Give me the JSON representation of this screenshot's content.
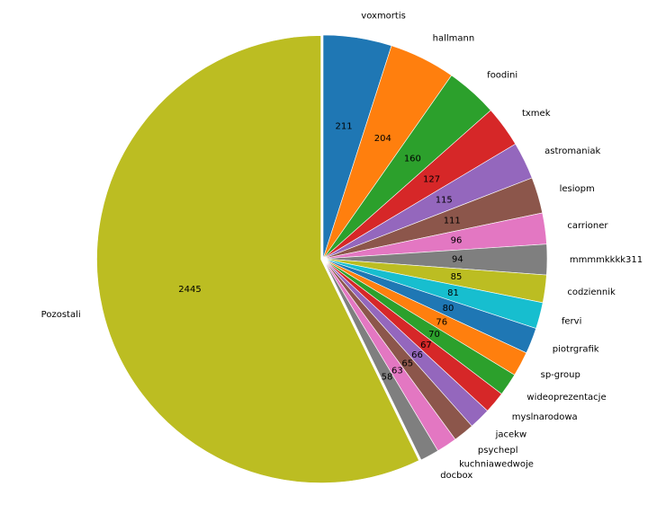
{
  "chart_data": {
    "type": "pie",
    "title": "",
    "start_angle_deg": 90,
    "direction": "clockwise",
    "slices": [
      {
        "label": "voxmortis",
        "value": 211,
        "color": "#1f77b4"
      },
      {
        "label": "hallmann",
        "value": 204,
        "color": "#ff7f0e"
      },
      {
        "label": "foodini",
        "value": 160,
        "color": "#2ca02c"
      },
      {
        "label": "txmek",
        "value": 127,
        "color": "#d62728"
      },
      {
        "label": "astromaniak",
        "value": 115,
        "color": "#9467bd"
      },
      {
        "label": "lesiopm",
        "value": 111,
        "color": "#8c564b"
      },
      {
        "label": "carrioner",
        "value": 96,
        "color": "#e377c2"
      },
      {
        "label": "mmmmkkkk311",
        "value": 94,
        "color": "#7f7f7f"
      },
      {
        "label": "codziennik",
        "value": 85,
        "color": "#bcbd22"
      },
      {
        "label": "fervi",
        "value": 81,
        "color": "#17becf"
      },
      {
        "label": "piotrgrafik",
        "value": 80,
        "color": "#1f77b4"
      },
      {
        "label": "sp-group",
        "value": 76,
        "color": "#ff7f0e"
      },
      {
        "label": "wideoprezentacje",
        "value": 70,
        "color": "#2ca02c"
      },
      {
        "label": "myslnarodowa",
        "value": 67,
        "color": "#d62728"
      },
      {
        "label": "jacekw",
        "value": 66,
        "color": "#9467bd"
      },
      {
        "label": "psychepl",
        "value": 65,
        "color": "#8c564b"
      },
      {
        "label": "kuchniawedwoje",
        "value": 63,
        "color": "#e377c2"
      },
      {
        "label": "docbox",
        "value": 58,
        "color": "#7f7f7f"
      },
      {
        "label": "Pozostali",
        "value": 2445,
        "color": "#bcbd22",
        "explode": true
      }
    ]
  }
}
